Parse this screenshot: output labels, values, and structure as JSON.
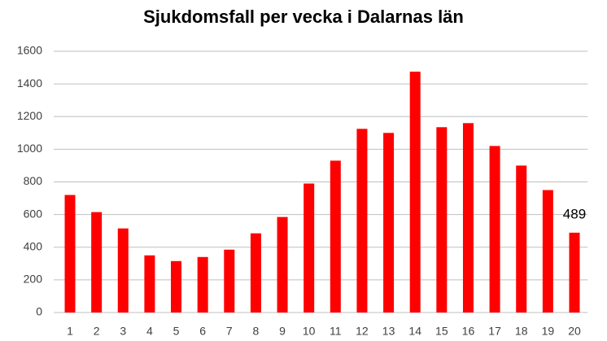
{
  "chart_data": {
    "type": "bar",
    "title": "Sjukdomsfall per vecka i Dalarnas län",
    "categories": [
      "1",
      "2",
      "3",
      "4",
      "5",
      "6",
      "7",
      "8",
      "9",
      "10",
      "11",
      "12",
      "13",
      "14",
      "15",
      "16",
      "17",
      "18",
      "19",
      "20"
    ],
    "values": [
      720,
      615,
      515,
      350,
      315,
      340,
      385,
      485,
      585,
      790,
      930,
      1125,
      1100,
      1475,
      1135,
      1160,
      1020,
      900,
      750,
      489
    ],
    "value_labels": [
      null,
      null,
      null,
      null,
      null,
      null,
      null,
      null,
      null,
      null,
      null,
      null,
      null,
      null,
      null,
      null,
      null,
      null,
      null,
      "489"
    ],
    "color": "#ff0000",
    "ylim": [
      0,
      1600
    ],
    "yticks": [
      0,
      200,
      400,
      600,
      800,
      1000,
      1200,
      1400,
      1600
    ],
    "grid": true
  }
}
